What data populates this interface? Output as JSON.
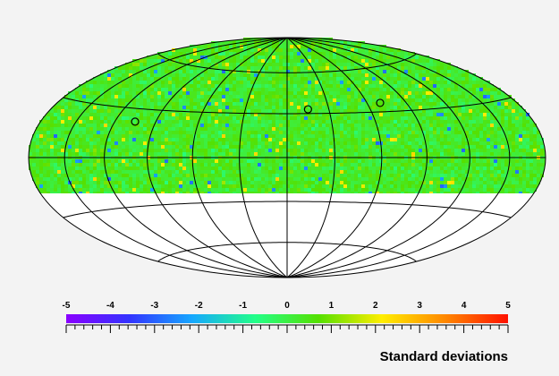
{
  "chart_data": {
    "type": "heatmap",
    "projection": "Hammer-Aitoff all-sky",
    "coverage": "northern sky down to about declination -25°",
    "graticule": {
      "longitude_lines_deg": [
        -150,
        -120,
        -90,
        -60,
        -30,
        0,
        30,
        60,
        90,
        120,
        150
      ],
      "latitude_lines_deg": [
        -60,
        -30,
        0,
        30,
        60
      ]
    },
    "map_values": {
      "typical_range": [
        -1,
        1.5
      ],
      "outlier_low": -3,
      "outlier_high": 2.5
    },
    "markers": [
      {
        "shape": "circle",
        "lon_deg": -105,
        "lat_deg": 22
      },
      {
        "shape": "circle",
        "lon_deg": 15,
        "lat_deg": 33
      },
      {
        "shape": "circle",
        "lon_deg": 70,
        "lat_deg": 36
      }
    ],
    "colorbar": {
      "title": "Standard deviations",
      "range": [
        -5,
        5
      ],
      "tick_labels": [
        "-5",
        "-4",
        "-3",
        "-2",
        "-1",
        "0",
        "1",
        "2",
        "3",
        "4",
        "5"
      ],
      "colors": [
        "#8a00ff",
        "#3333ff",
        "#16a8ff",
        "#22ff88",
        "#55e000",
        "#ffee00",
        "#ff8800",
        "#ff1100"
      ]
    }
  }
}
